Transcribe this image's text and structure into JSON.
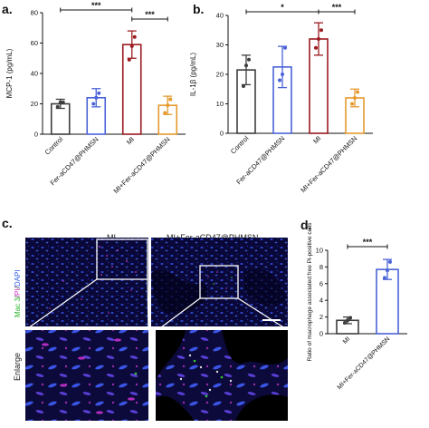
{
  "panels": {
    "a": "a.",
    "b": "b.",
    "c": "c.",
    "d": "d."
  },
  "chart_data": [
    {
      "panel": "a",
      "type": "bar",
      "ylabel": "MCP-1 (pg/mL)",
      "ylim": [
        0,
        80
      ],
      "yticks": [
        "0",
        "20",
        "40",
        "60",
        "80"
      ],
      "categories": [
        "Control",
        "Fer-aCD47@PHMSN",
        "MI",
        "MI+Fer-aCD47@PHMSN"
      ],
      "values": [
        20,
        24,
        59,
        19
      ],
      "errors": [
        3,
        6,
        9,
        6
      ],
      "points": [
        [
          18,
          21,
          21
        ],
        [
          20,
          24,
          27
        ],
        [
          49,
          58,
          64
        ],
        [
          14,
          19,
          23
        ]
      ],
      "colors": [
        "#3d3d3d",
        "#4a63d8",
        "#9b1b20",
        "#e59a2f"
      ],
      "significance": [
        {
          "from": 0,
          "to": 2,
          "label": "***"
        },
        {
          "from": 2,
          "to": 3,
          "label": "***"
        }
      ]
    },
    {
      "panel": "b",
      "type": "bar",
      "ylabel": "IL-1β (pg/mL)",
      "ylim": [
        0,
        40
      ],
      "yticks": [
        "0",
        "10",
        "20",
        "30",
        "40"
      ],
      "categories": [
        "Control",
        "Fer-aCD47@PHMSN",
        "MI",
        "MI+Fer-aCD47@PHMSN"
      ],
      "values": [
        21.5,
        22.5,
        32,
        12
      ],
      "errors": [
        5,
        7,
        5.5,
        3
      ],
      "points": [
        [
          16,
          23,
          25
        ],
        [
          18,
          20,
          29
        ],
        [
          29,
          32,
          35
        ],
        [
          10,
          12,
          14
        ]
      ],
      "colors": [
        "#3d3d3d",
        "#4a63d8",
        "#9b1b20",
        "#e59a2f"
      ],
      "significance": [
        {
          "from": 0,
          "to": 2,
          "label": "*"
        },
        {
          "from": 2,
          "to": 3,
          "label": "***"
        }
      ]
    },
    {
      "panel": "d",
      "type": "bar",
      "ylabel": "Ratio of macrophage associated:free Pi-positive cells",
      "ylim": [
        0,
        10
      ],
      "yticks": [
        "0",
        "2",
        "4",
        "6",
        "8",
        "10"
      ],
      "categories": [
        "MI",
        "MI+Fer-aCD47@PHMSN"
      ],
      "values": [
        1.6,
        7.7
      ],
      "errors": [
        0.4,
        1.2
      ],
      "points": [
        [
          1.3,
          1.6,
          1.9
        ],
        [
          6.7,
          7.6,
          8.6
        ]
      ],
      "colors": [
        "#3d3d3d",
        "#4a63d8"
      ],
      "significance": [
        {
          "from": 0,
          "to": 1,
          "label": "***"
        }
      ]
    }
  ],
  "micrographs": {
    "col_mi": "MI",
    "col_treated": "MI+Fer-aCD47@PHMSN",
    "row_enlarge": "Enlarge",
    "stain_mac3": "Mac 3",
    "stain_sep1": "/",
    "stain_pi": "PI",
    "stain_sep2": "/",
    "stain_dapi": "DAPI",
    "colors": {
      "mac3": "#37c837",
      "pi": "#e23fd0",
      "dapi": "#3c6cff",
      "background": "#07052e"
    }
  }
}
